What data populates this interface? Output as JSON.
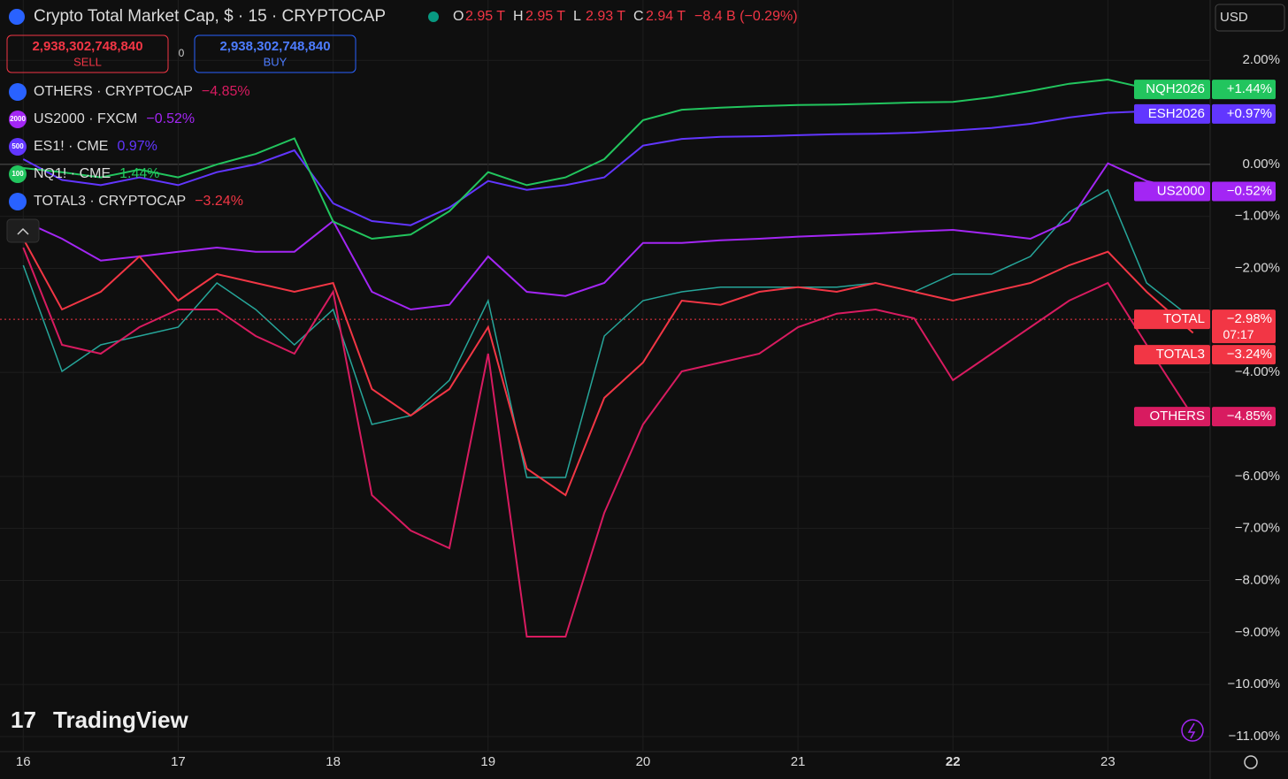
{
  "header": {
    "title": "Crypto Total Market Cap, $ · 15 · CRYPTOCAP",
    "ohlc": [
      {
        "k": "O",
        "v": "2.95 T"
      },
      {
        "k": "H",
        "v": "2.95 T"
      },
      {
        "k": "L",
        "v": "2.93 T"
      },
      {
        "k": "C",
        "v": "2.94 T"
      }
    ],
    "change": "−8.4 B (−0.29%)",
    "sell_price": "2,938,302,748,840",
    "sell": "SELL",
    "spread": "0",
    "buy_price": "2,938,302,748,840",
    "buy": "BUY",
    "currency": "USD",
    "brand": "TradingView",
    "countdown": "07:17"
  },
  "chart_data": {
    "type": "line",
    "x": [
      16,
      16.25,
      16.5,
      16.75,
      17,
      17.25,
      17.5,
      17.75,
      18,
      18.25,
      18.5,
      18.75,
      19,
      19.25,
      19.5,
      19.75,
      20,
      20.25,
      20.5,
      20.75,
      21,
      21.25,
      21.5,
      21.75,
      22,
      22.25,
      22.5,
      22.75,
      23,
      23.25,
      23.55
    ],
    "xlim": [
      15.85,
      23.66
    ],
    "xticks": [
      16,
      17,
      18,
      19,
      20,
      21,
      22,
      23
    ],
    "ylim": [
      -11.29,
      3.16
    ],
    "yticks": [
      {
        "value": 2,
        "label": "2.00%"
      },
      {
        "value": 0,
        "label": "0.00%"
      },
      {
        "value": -1,
        "label": "−1.00%"
      },
      {
        "value": -2,
        "label": "−2.00%"
      },
      {
        "value": -4,
        "label": "−4.00%"
      },
      {
        "value": -6,
        "label": "−6.00%"
      },
      {
        "value": -7,
        "label": "−7.00%"
      },
      {
        "value": -8,
        "label": "−8.00%"
      },
      {
        "value": -9,
        "label": "−9.00%"
      },
      {
        "value": -10,
        "label": "−10.00%"
      },
      {
        "value": -11,
        "label": "−11.00%"
      }
    ],
    "grid": true,
    "series": [
      {
        "name": "TOTAL",
        "tag": "TOTAL",
        "change": "−2.98%",
        "color": "#26a69a",
        "main": true,
        "values": [
          -1.94,
          -3.98,
          -3.47,
          -3.3,
          -3.13,
          -2.28,
          -2.79,
          -3.47,
          -2.79,
          -5.0,
          -4.83,
          -4.15,
          -2.62,
          -6.02,
          -6.02,
          -3.3,
          -2.62,
          -2.45,
          -2.36,
          -2.36,
          -2.36,
          -2.36,
          -2.28,
          -2.45,
          -2.11,
          -2.11,
          -1.77,
          -0.92,
          -0.49,
          -2.28,
          -2.98
        ]
      },
      {
        "name": "OTHERS · CRYPTOCAP",
        "tag": "OTHERS",
        "change": "−4.85%",
        "color": "#d81b60",
        "icon": "",
        "values": [
          -1.6,
          -3.47,
          -3.64,
          -3.13,
          -2.79,
          -2.79,
          -3.3,
          -3.64,
          -2.45,
          -6.36,
          -7.04,
          -7.38,
          -3.64,
          -9.08,
          -9.08,
          -6.7,
          -5.0,
          -3.98,
          -3.81,
          -3.64,
          -3.13,
          -2.87,
          -2.79,
          -2.96,
          -4.15,
          -3.64,
          -3.13,
          -2.62,
          -2.28,
          -3.47,
          -4.85
        ]
      },
      {
        "name": "US2000 · FXCM",
        "tag": "US2000",
        "change": "−0.52%",
        "color": "#a326f4",
        "icon": "2000",
        "values": [
          -1.09,
          -1.43,
          -1.85,
          -1.77,
          -1.68,
          -1.6,
          -1.68,
          -1.68,
          -1.09,
          -2.45,
          -2.79,
          -2.7,
          -1.77,
          -2.45,
          -2.53,
          -2.28,
          -1.51,
          -1.51,
          -1.46,
          -1.43,
          -1.39,
          -1.36,
          -1.33,
          -1.29,
          -1.26,
          -1.34,
          -1.43,
          -1.09,
          0.02,
          -0.32,
          -0.52
        ]
      },
      {
        "name": "ES1! · CME",
        "tag": "ESH2026",
        "change": "+0.97%",
        "legend_change": "0.97%",
        "color": "#6236ff",
        "icon": "500",
        "values": [
          0.1,
          -0.3,
          -0.4,
          -0.25,
          -0.4,
          -0.15,
          0,
          0.27,
          -0.75,
          -1.09,
          -1.17,
          -0.83,
          -0.32,
          -0.49,
          -0.4,
          -0.25,
          0.36,
          0.49,
          0.53,
          0.54,
          0.56,
          0.58,
          0.59,
          0.61,
          0.65,
          0.7,
          0.78,
          0.9,
          0.99,
          1.02,
          0.97
        ]
      },
      {
        "name": "NQ1! · CME",
        "tag": "NQH2026",
        "change": "+1.44%",
        "legend_change": "1.44%",
        "color": "#22c55e",
        "icon": "100",
        "values": [
          -0.07,
          -0.15,
          -0.25,
          -0.1,
          -0.25,
          0,
          0.2,
          0.5,
          -1.1,
          -1.43,
          -1.35,
          -0.9,
          -0.15,
          -0.4,
          -0.25,
          0.1,
          0.85,
          1.05,
          1.09,
          1.12,
          1.14,
          1.15,
          1.17,
          1.19,
          1.2,
          1.29,
          1.41,
          1.55,
          1.63,
          1.46,
          1.44
        ]
      },
      {
        "name": "TOTAL3 · CRYPTOCAP",
        "tag": "TOTAL3",
        "change": "−3.24%",
        "color": "#f23645",
        "icon": "",
        "values": [
          -1.43,
          -2.79,
          -2.45,
          -1.77,
          -2.62,
          -2.11,
          -2.28,
          -2.45,
          -2.28,
          -4.32,
          -4.83,
          -4.32,
          -3.13,
          -5.85,
          -6.36,
          -4.49,
          -3.81,
          -2.62,
          -2.7,
          -2.45,
          -2.36,
          -2.45,
          -2.28,
          -2.45,
          -2.62,
          -2.45,
          -2.28,
          -1.94,
          -1.68,
          -2.45,
          -3.24
        ]
      }
    ]
  }
}
